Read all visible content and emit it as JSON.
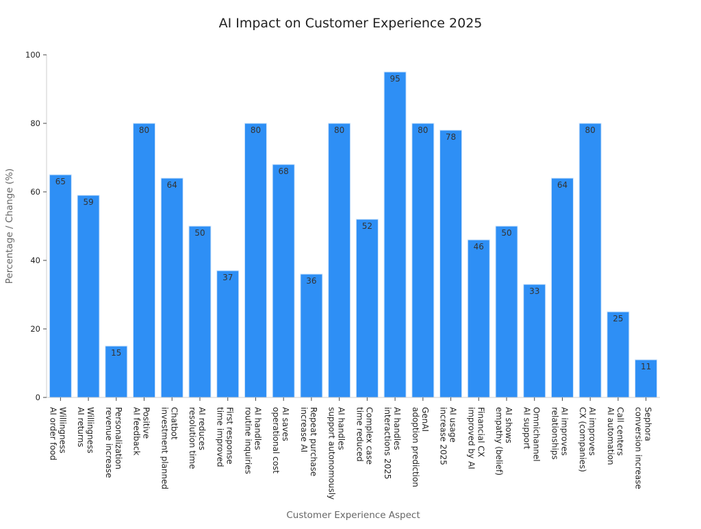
{
  "chart_data": {
    "type": "bar",
    "title": "AI Impact on Customer Experience 2025",
    "xlabel": "Customer Experience Aspect",
    "ylabel": "Percentage / Change (%)",
    "ylim": [
      0,
      100
    ],
    "yticks": [
      0,
      20,
      40,
      60,
      80,
      100
    ],
    "grid": false,
    "bar_color": "#2e8ff5",
    "categories": [
      [
        "Willingness",
        "AI order food"
      ],
      [
        "Willingness",
        "AI returns"
      ],
      [
        "Personalization",
        "revenue increase"
      ],
      [
        "Positive",
        "AI feedback"
      ],
      [
        "Chatbot",
        "investment planned"
      ],
      [
        "AI reduces",
        "resolution time"
      ],
      [
        "First response",
        "time improved"
      ],
      [
        "AI handles",
        "routine inquiries"
      ],
      [
        "AI saves",
        "operational cost"
      ],
      [
        "Repeat purchase",
        "increase AI"
      ],
      [
        "AI handles",
        "support autonomously"
      ],
      [
        "Complex case",
        "time reduced"
      ],
      [
        "AI handles",
        "interactions 2025"
      ],
      [
        "GenAI",
        "adoption prediction"
      ],
      [
        "AI usage",
        "increase 2025"
      ],
      [
        "Financial CX",
        "improved by AI"
      ],
      [
        "AI shows",
        "empathy (belief)"
      ],
      [
        "Omnichannel",
        "AI support"
      ],
      [
        "AI improves",
        "relationships"
      ],
      [
        "AI improves",
        "CX (companies)"
      ],
      [
        "Call centers",
        "AI automation"
      ],
      [
        "Sephora",
        "conversion increase"
      ]
    ],
    "values": [
      65,
      59,
      15,
      80,
      64,
      50,
      37,
      80,
      68,
      36,
      80,
      52,
      95,
      80,
      78,
      46,
      50,
      33,
      64,
      80,
      25,
      11
    ]
  }
}
